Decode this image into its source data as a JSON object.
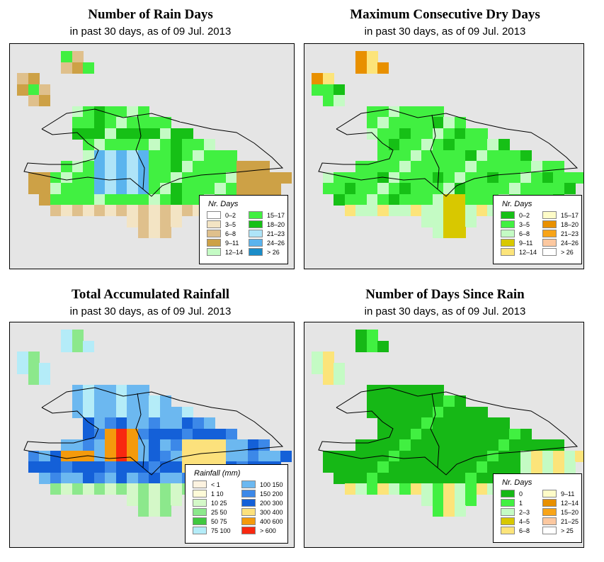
{
  "panels": [
    {
      "title": "Number of Rain Days",
      "subtitle": "in past 30 days, as of  09 Jul. 2013",
      "legend": {
        "title": "Nr. Days",
        "items": [
          {
            "label": "0–2",
            "color": "#ffffff"
          },
          {
            "label": "3–5",
            "color": "#f3e4c4"
          },
          {
            "label": "6–8",
            "color": "#dfc08c"
          },
          {
            "label": "9–11",
            "color": "#cda146"
          },
          {
            "label": "12–14",
            "color": "#c4fbc4"
          },
          {
            "label": "15–17",
            "color": "#41f041"
          },
          {
            "label": "18–20",
            "color": "#16c016"
          },
          {
            "label": "21–23",
            "color": "#aee4f8"
          },
          {
            "label": "24–26",
            "color": "#5ab4ee"
          },
          {
            "label": "> 26",
            "color": "#1a8cc8"
          }
        ]
      }
    },
    {
      "title": "Maximum Consecutive Dry Days",
      "subtitle": "in past 30 days, as of  09 Jul. 2013",
      "legend": {
        "title": "Nr. Days",
        "items": [
          {
            "label": "0–2",
            "color": "#16c016"
          },
          {
            "label": "3–5",
            "color": "#41f041"
          },
          {
            "label": "6–8",
            "color": "#c4fbc4"
          },
          {
            "label": "9–11",
            "color": "#d8c800"
          },
          {
            "label": "12–14",
            "color": "#fce47a"
          },
          {
            "label": "15–17",
            "color": "#fefcc8"
          },
          {
            "label": "18–20",
            "color": "#e89000"
          },
          {
            "label": "21–23",
            "color": "#f8a418"
          },
          {
            "label": "24–26",
            "color": "#fcc8a0"
          },
          {
            "label": "> 26",
            "color": "#ffffff"
          }
        ]
      }
    },
    {
      "title": "Total Accumulated Rainfall",
      "subtitle": "in past 30 days, as of  09 Jul. 2013",
      "legend": {
        "title": "Rainfall (mm)",
        "items": [
          {
            "label": "< 1",
            "color": "#fdf3e0"
          },
          {
            "label": "1     10",
            "color": "#fefbd8"
          },
          {
            "label": "10     25",
            "color": "#d4f8c8"
          },
          {
            "label": "25     50",
            "color": "#8ce88c"
          },
          {
            "label": "50     75",
            "color": "#40c840"
          },
          {
            "label": "75   100",
            "color": "#b4ecf8"
          },
          {
            "label": "100   150",
            "color": "#6cb8f0"
          },
          {
            "label": "150   200",
            "color": "#3c88e8"
          },
          {
            "label": "200   300",
            "color": "#1460d8"
          },
          {
            "label": "300   400",
            "color": "#fce17c"
          },
          {
            "label": "400   600",
            "color": "#f49a0c"
          },
          {
            "label": "> 600",
            "color": "#f82810"
          }
        ]
      }
    },
    {
      "title": "Number of Days Since Rain",
      "subtitle": "in past 30 days, as of  09 Jul. 2013",
      "legend": {
        "title": "Nr. Days",
        "items": [
          {
            "label": "0",
            "color": "#16b816"
          },
          {
            "label": "1",
            "color": "#41f041"
          },
          {
            "label": "2–3",
            "color": "#c4fbc4"
          },
          {
            "label": "4–5",
            "color": "#d8c800"
          },
          {
            "label": "6–8",
            "color": "#fce47a"
          },
          {
            "label": "9–11",
            "color": "#fefcc8"
          },
          {
            "label": "12–14",
            "color": "#e89000"
          },
          {
            "label": "15–20",
            "color": "#f8a418"
          },
          {
            "label": "21–25",
            "color": "#fcc8a0"
          },
          {
            "label": "> 25",
            "color": "#ffffff"
          }
        ]
      }
    }
  ],
  "colors": {
    "map_background": "#e5e5e5",
    "coastline": "#000000"
  }
}
